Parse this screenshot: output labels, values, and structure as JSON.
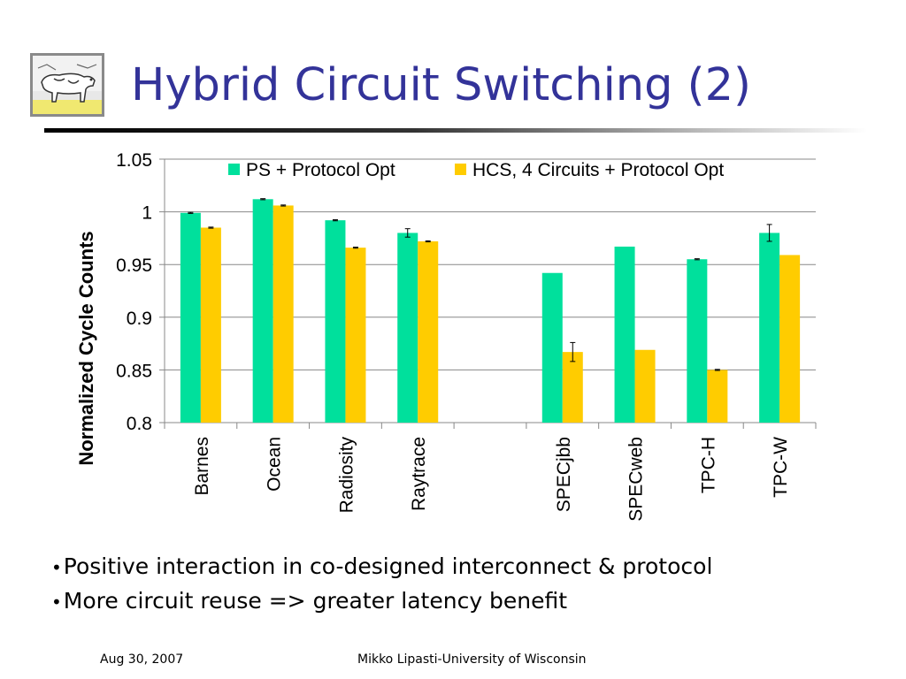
{
  "slide": {
    "title": "Hybrid Circuit Switching (2)",
    "bullets": [
      "Positive interaction in co-designed interconnect & protocol",
      "More circuit reuse => greater latency benefit"
    ],
    "bullet_marker": "•",
    "footer_date": "Aug 30, 2007",
    "footer_author": "Mikko Lipasti-University of Wisconsin"
  },
  "colors": {
    "title": "#333399",
    "series_ps": "#00e09c",
    "series_hcs": "#ffcc00",
    "grid": "#888888"
  },
  "logo": {
    "icon": "cow-painting-icon"
  },
  "chart_data": {
    "type": "bar",
    "ylabel": "Normalized Cycle Counts",
    "xlabel": "",
    "ylim": [
      0.8,
      1.05
    ],
    "yticks": [
      0.8,
      0.85,
      0.9,
      0.95,
      1,
      1.05
    ],
    "ytick_labels": [
      "0.8",
      "0.85",
      "0.9",
      "0.95",
      "1",
      "1.05"
    ],
    "grid": true,
    "legend": "top",
    "categories": [
      "Barnes",
      "Ocean",
      "Radiosity",
      "Raytrace",
      "",
      "SPECjbb",
      "SPECweb",
      "TPC-H",
      "TPC-W"
    ],
    "series": [
      {
        "name": "PS + Protocol Opt",
        "color": "#00e09c",
        "values": [
          0.999,
          1.012,
          0.992,
          0.98,
          null,
          0.942,
          0.967,
          0.955,
          0.98
        ],
        "errors": [
          0.0005,
          0.0005,
          0.0005,
          0.004,
          null,
          null,
          null,
          0.0005,
          0.008
        ]
      },
      {
        "name": "HCS, 4 Circuits + Protocol Opt",
        "color": "#ffcc00",
        "values": [
          0.985,
          1.006,
          0.966,
          0.972,
          null,
          0.867,
          0.869,
          0.85,
          0.959
        ],
        "errors": [
          0.0005,
          0.0005,
          0.0005,
          0.0005,
          null,
          0.009,
          null,
          0.0005,
          null
        ]
      }
    ]
  }
}
